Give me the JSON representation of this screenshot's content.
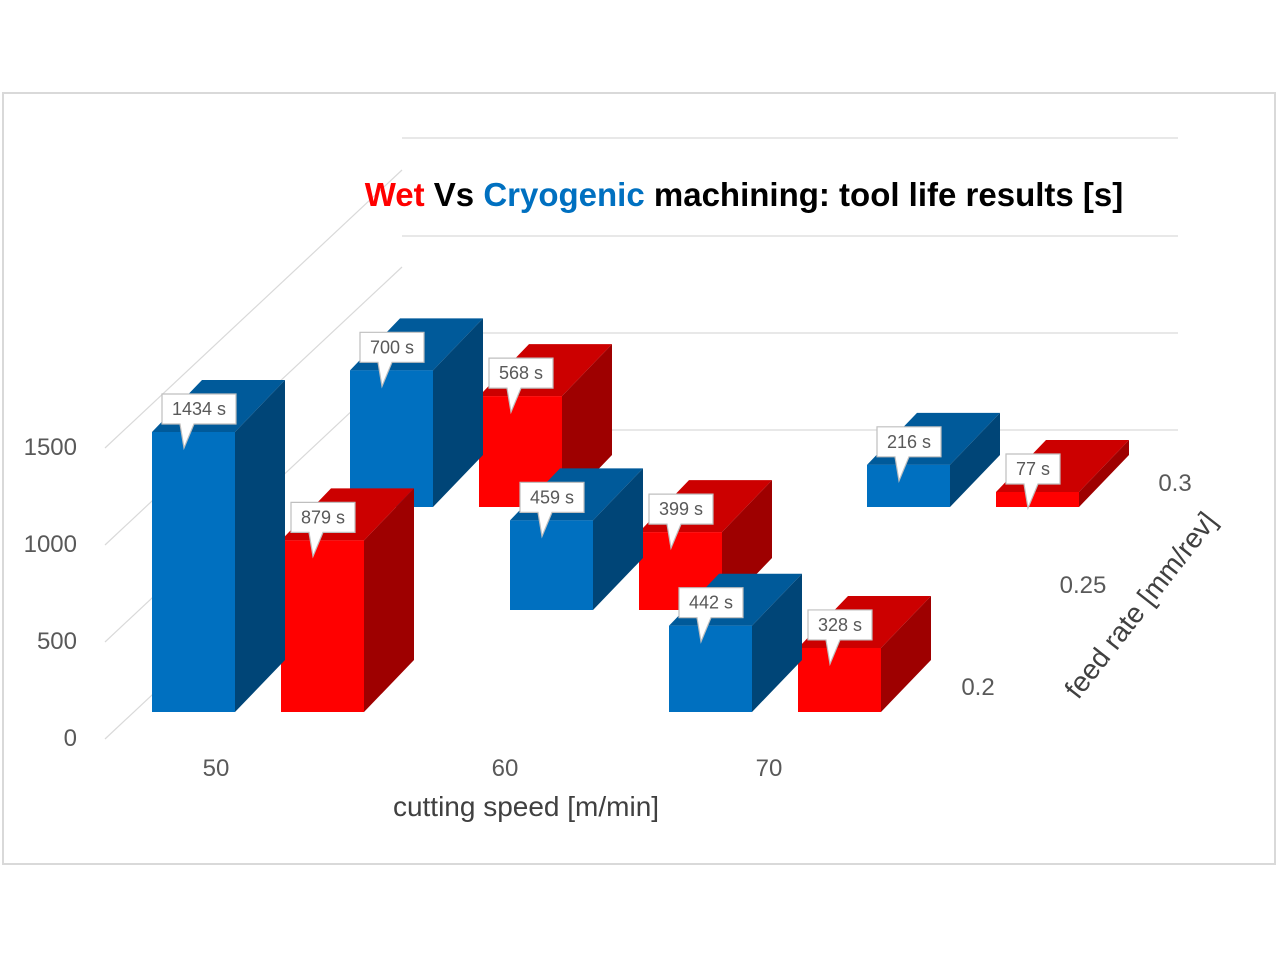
{
  "chart_data": {
    "type": "bar",
    "title": {
      "parts": [
        {
          "text": "Wet",
          "color": "#ff0000"
        },
        {
          "text": " Vs ",
          "color": "#000000"
        },
        {
          "text": "Cryogenic",
          "color": "#0070c0"
        },
        {
          "text": " machining: tool life results [s]",
          "color": "#000000"
        }
      ]
    },
    "xlabel": "cutting speed [m/min]",
    "zlabel": "feed rate [mm/rev]",
    "categories": [
      "50",
      "60",
      "70"
    ],
    "depth_categories": [
      "0.2",
      "0.25",
      "0.3"
    ],
    "y_ticks": [
      "0",
      "500",
      "1000",
      "1500"
    ],
    "ylim": [
      0,
      1500
    ],
    "grid": true,
    "series": [
      {
        "name": "Cryogenic",
        "color": "#0070c0"
      },
      {
        "name": "Wet",
        "color": "#ff0000"
      }
    ],
    "value_suffix": " s",
    "points": [
      {
        "series": "Cryogenic",
        "x": "50",
        "z": "0.2",
        "value": 1434,
        "label": "1434 s"
      },
      {
        "series": "Wet",
        "x": "50",
        "z": "0.2",
        "value": 879,
        "label": "879 s"
      },
      {
        "series": "Cryogenic",
        "x": "60",
        "z": "0.3",
        "value": 700,
        "label": "700 s"
      },
      {
        "series": "Wet",
        "x": "60",
        "z": "0.3",
        "value": 568,
        "label": "568 s"
      },
      {
        "series": "Cryogenic",
        "x": "60",
        "z": "0.25",
        "value": 459,
        "label": "459 s"
      },
      {
        "series": "Wet",
        "x": "60",
        "z": "0.25",
        "value": 399,
        "label": "399 s"
      },
      {
        "series": "Cryogenic",
        "x": "70",
        "z": "0.2",
        "value": 442,
        "label": "442 s"
      },
      {
        "series": "Wet",
        "x": "70",
        "z": "0.2",
        "value": 328,
        "label": "328 s"
      },
      {
        "series": "Cryogenic",
        "x": "70",
        "z": "0.3",
        "value": 216,
        "label": "216 s"
      },
      {
        "series": "Wet",
        "x": "70",
        "z": "0.3",
        "value": 77,
        "label": "77 s"
      }
    ]
  }
}
